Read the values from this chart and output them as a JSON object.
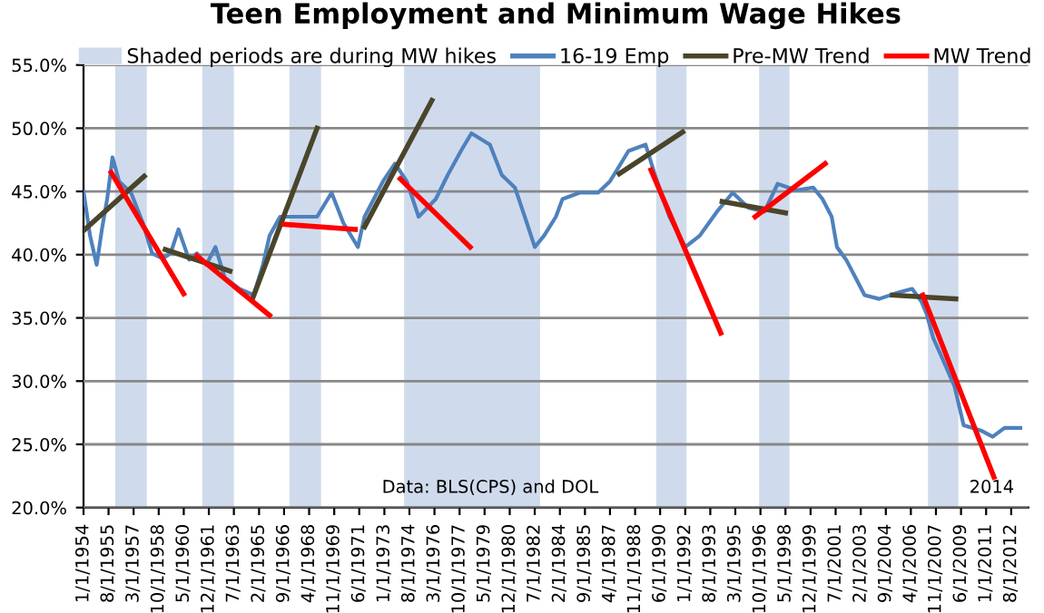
{
  "chart_data": {
    "type": "line",
    "title": "Teen Employment and Minimum Wage Hikes",
    "series": [
      {
        "name": "16-19 Emp",
        "color": "#4f81bd",
        "x": [
          "1954-01",
          "1954-06",
          "1954-11",
          "1955-03",
          "1955-07",
          "1955-11",
          "1956-04",
          "1957-01",
          "1957-10",
          "1958-05",
          "1959-01",
          "1959-07",
          "1960-01",
          "1960-09",
          "1961-03",
          "1961-10",
          "1962-05",
          "1962-12",
          "1963-11",
          "1964-10",
          "1965-05",
          "1965-10",
          "1966-06",
          "1967-09",
          "1968-10",
          "1969-09",
          "1970-06",
          "1971-05",
          "1971-10",
          "1972-12",
          "1973-09",
          "1974-06",
          "1975-03",
          "1976-04",
          "1977-01",
          "1977-11",
          "1978-07",
          "1979-09",
          "1980-06",
          "1981-04",
          "1982-01",
          "1982-07",
          "1983-02",
          "1983-11",
          "1984-04",
          "1985-05",
          "1986-07",
          "1987-04",
          "1987-11",
          "1988-06",
          "1989-07",
          "1990-02",
          "1991-01",
          "1992-01",
          "1992-12",
          "1994-01",
          "1995-01",
          "1996-01",
          "1997-01",
          "1997-11",
          "1999-01",
          "2000-02",
          "2000-09",
          "2001-04",
          "2001-08",
          "2002-03",
          "2002-10",
          "2003-05",
          "2004-04",
          "2005-06",
          "2006-05",
          "2006-12",
          "2007-04",
          "2007-09",
          "2008-03",
          "2009-01",
          "2009-08",
          "2010-09",
          "2011-06",
          "2012-03",
          "2013-03"
        ],
        "values": [
          45.0,
          41.5,
          39.2,
          42.0,
          44.4,
          47.7,
          45.8,
          44.9,
          42.5,
          40.1,
          39.7,
          40.1,
          42.0,
          39.6,
          40.1,
          39.2,
          40.6,
          38.2,
          37.3,
          36.8,
          39.2,
          41.5,
          43.0,
          43.0,
          43.0,
          44.9,
          42.5,
          40.6,
          43.0,
          45.8,
          47.2,
          45.8,
          43.0,
          44.4,
          46.3,
          48.2,
          49.6,
          48.7,
          46.3,
          45.3,
          42.5,
          40.6,
          41.5,
          43.0,
          44.4,
          44.9,
          44.9,
          45.8,
          47.0,
          48.2,
          48.7,
          46.3,
          43.0,
          40.6,
          41.5,
          43.4,
          44.9,
          43.7,
          43.4,
          45.6,
          45.1,
          45.3,
          44.4,
          43.0,
          40.6,
          39.6,
          38.2,
          36.8,
          36.5,
          37.0,
          37.3,
          36.3,
          35.3,
          33.4,
          32.0,
          29.6,
          26.5,
          26.1,
          25.6,
          26.3,
          26.3
        ]
      },
      {
        "name": "Pre-MW Trend",
        "color": "#4a452a",
        "x": [
          "1954-01",
          "1957-11",
          null,
          "1959-03",
          "1963-04",
          null,
          "1964-09",
          "1968-10",
          null,
          "1971-10",
          "1976-01",
          null,
          "1987-11",
          "1991-11",
          null,
          "1994-05",
          "1998-05",
          null,
          "2005-02",
          "2009-02"
        ],
        "values": [
          41.9,
          46.2,
          null,
          40.4,
          38.7,
          null,
          36.5,
          50.0,
          null,
          42.2,
          52.2,
          null,
          46.4,
          49.7,
          null,
          44.2,
          43.3,
          null,
          36.8,
          36.5
        ]
      },
      {
        "name": "MW Trend",
        "color": "#ff0000",
        "x": [
          "1955-10",
          "1960-05",
          null,
          "1961-03",
          "1965-10",
          null,
          "1966-09",
          "1971-03",
          null,
          "1974-01",
          "1978-06",
          null,
          "1989-11",
          "1994-04",
          null,
          "1996-06",
          "2000-11",
          null,
          "2007-01",
          "2011-07"
        ],
        "values": [
          46.5,
          36.9,
          null,
          39.9,
          35.2,
          null,
          42.4,
          42.0,
          null,
          46.0,
          40.6,
          null,
          46.7,
          33.8,
          null,
          43.0,
          47.2,
          null,
          36.8,
          22.4
        ]
      }
    ],
    "bands": [
      {
        "axis": "x",
        "from": "1956-01",
        "to": "1958-01",
        "label": "Shaded periods are during MW hikes",
        "color": "#cfdbec"
      },
      {
        "axis": "x",
        "from": "1961-07",
        "to": "1963-07",
        "color": "#cfdbec"
      },
      {
        "axis": "x",
        "from": "1967-01",
        "to": "1969-01",
        "color": "#cfdbec"
      },
      {
        "axis": "x",
        "from": "1974-04",
        "to": "1982-11",
        "color": "#cfdbec"
      },
      {
        "axis": "x",
        "from": "1990-03",
        "to": "1992-02",
        "color": "#cfdbec"
      },
      {
        "axis": "x",
        "from": "1996-09",
        "to": "1998-08",
        "color": "#cfdbec"
      },
      {
        "axis": "x",
        "from": "2007-05",
        "to": "2009-04",
        "color": "#cfdbec"
      }
    ],
    "annotations": [
      "Data: BLS(CPS) and DOL",
      "2014"
    ],
    "xlim": [
      "1954-01",
      "2013-09"
    ],
    "xticks": [
      {
        "value": "1954-01",
        "label": "1/1/1954"
      },
      {
        "value": "1955-08",
        "label": "8/1/1955"
      },
      {
        "value": "1957-03",
        "label": "3/1/1957"
      },
      {
        "value": "1958-10",
        "label": "10/1/1958"
      },
      {
        "value": "1960-05",
        "label": "5/1/1960"
      },
      {
        "value": "1961-12",
        "label": "12/1/1961"
      },
      {
        "value": "1963-07",
        "label": "7/1/1963"
      },
      {
        "value": "1965-02",
        "label": "2/1/1965"
      },
      {
        "value": "1966-09",
        "label": "9/1/1966"
      },
      {
        "value": "1968-04",
        "label": "4/1/1968"
      },
      {
        "value": "1969-11",
        "label": "11/1/1969"
      },
      {
        "value": "1971-06",
        "label": "6/1/1971"
      },
      {
        "value": "1973-01",
        "label": "1/1/1973"
      },
      {
        "value": "1974-08",
        "label": "8/1/1974"
      },
      {
        "value": "1976-03",
        "label": "3/1/1976"
      },
      {
        "value": "1977-10",
        "label": "10/1/1977"
      },
      {
        "value": "1979-05",
        "label": "5/1/1979"
      },
      {
        "value": "1980-12",
        "label": "12/1/1980"
      },
      {
        "value": "1982-07",
        "label": "7/1/1982"
      },
      {
        "value": "1984-02",
        "label": "2/1/1984"
      },
      {
        "value": "1985-09",
        "label": "9/1/1985"
      },
      {
        "value": "1987-04",
        "label": "4/1/1987"
      },
      {
        "value": "1988-11",
        "label": "11/1/1988"
      },
      {
        "value": "1990-06",
        "label": "6/1/1990"
      },
      {
        "value": "1992-01",
        "label": "1/1/1992"
      },
      {
        "value": "1993-08",
        "label": "8/1/1993"
      },
      {
        "value": "1995-03",
        "label": "3/1/1995"
      },
      {
        "value": "1996-10",
        "label": "10/1/1996"
      },
      {
        "value": "1998-05",
        "label": "5/1/1998"
      },
      {
        "value": "1999-12",
        "label": "12/1/1999"
      },
      {
        "value": "2001-07",
        "label": "7/1/2001"
      },
      {
        "value": "2003-02",
        "label": "2/1/2003"
      },
      {
        "value": "2004-09",
        "label": "9/1/2004"
      },
      {
        "value": "2006-04",
        "label": "4/1/2006"
      },
      {
        "value": "2007-11",
        "label": "11/1/2007"
      },
      {
        "value": "2009-06",
        "label": "6/1/2009"
      },
      {
        "value": "2011-01",
        "label": "1/1/2011"
      },
      {
        "value": "2012-08",
        "label": "8/1/2012"
      }
    ],
    "ylim": [
      20,
      55
    ],
    "yticks": [
      {
        "value": 20,
        "label": "20.0%"
      },
      {
        "value": 25,
        "label": "25.0%"
      },
      {
        "value": 30,
        "label": "30.0%"
      },
      {
        "value": 35,
        "label": "35.0%"
      },
      {
        "value": 40,
        "label": "40.0%"
      },
      {
        "value": 45,
        "label": "45.0%"
      },
      {
        "value": 50,
        "label": "50.0%"
      },
      {
        "value": 55,
        "label": "55.0%"
      }
    ],
    "grid": "y",
    "legend": "top"
  }
}
